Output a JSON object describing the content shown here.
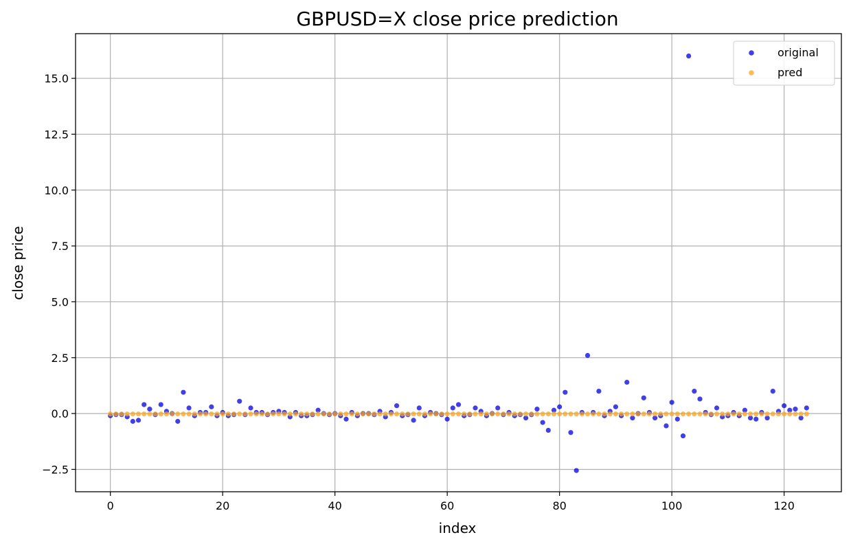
{
  "chart_data": {
    "type": "scatter",
    "title": "GBPUSD=X close price prediction",
    "xlabel": "index",
    "ylabel": "close price",
    "xlim": [
      -6.2,
      130.2
    ],
    "ylim": [
      -3.5,
      17.0
    ],
    "xticks": [
      0,
      20,
      40,
      60,
      80,
      100,
      120
    ],
    "yticks": [
      -2.5,
      0.0,
      2.5,
      5.0,
      7.5,
      10.0,
      12.5,
      15.0
    ],
    "grid": true,
    "legend_position": "upper right",
    "series": [
      {
        "name": "original",
        "color": "#0000dd",
        "x": [
          0,
          1,
          2,
          3,
          4,
          5,
          6,
          7,
          8,
          9,
          10,
          11,
          12,
          13,
          14,
          15,
          16,
          17,
          18,
          19,
          20,
          21,
          22,
          23,
          24,
          25,
          26,
          27,
          28,
          29,
          30,
          31,
          32,
          33,
          34,
          35,
          36,
          37,
          38,
          39,
          40,
          41,
          42,
          43,
          44,
          45,
          46,
          47,
          48,
          49,
          50,
          51,
          52,
          53,
          54,
          55,
          56,
          57,
          58,
          59,
          60,
          61,
          62,
          63,
          64,
          65,
          66,
          67,
          68,
          69,
          70,
          71,
          72,
          73,
          74,
          75,
          76,
          77,
          78,
          79,
          80,
          81,
          82,
          83,
          84,
          85,
          86,
          87,
          88,
          89,
          90,
          91,
          92,
          93,
          94,
          95,
          96,
          97,
          98,
          99,
          100,
          101,
          102,
          103,
          104,
          105,
          106,
          107,
          108,
          109,
          110,
          111,
          112,
          113,
          114,
          115,
          116,
          117,
          118,
          119,
          120,
          121,
          122,
          123,
          124
        ],
        "y": [
          -0.1,
          -0.05,
          -0.05,
          -0.15,
          -0.35,
          -0.3,
          0.4,
          0.2,
          -0.05,
          0.4,
          0.1,
          0.0,
          -0.35,
          0.95,
          0.25,
          -0.1,
          0.05,
          0.05,
          0.3,
          -0.1,
          0.05,
          -0.1,
          -0.05,
          0.55,
          -0.05,
          0.25,
          0.05,
          0.05,
          -0.05,
          0.05,
          0.1,
          0.05,
          -0.15,
          0.05,
          -0.1,
          -0.1,
          -0.05,
          0.15,
          0.0,
          -0.05,
          0.0,
          -0.1,
          -0.25,
          0.05,
          -0.1,
          0.0,
          0.0,
          -0.05,
          0.1,
          -0.15,
          0.05,
          0.35,
          -0.1,
          -0.05,
          -0.3,
          0.25,
          -0.1,
          0.05,
          0.0,
          -0.05,
          -0.25,
          0.25,
          0.4,
          -0.1,
          -0.05,
          0.25,
          0.1,
          -0.1,
          0.0,
          0.25,
          -0.05,
          0.05,
          -0.1,
          -0.05,
          -0.2,
          -0.05,
          0.2,
          -0.4,
          -0.75,
          0.15,
          0.3,
          0.95,
          -0.85,
          -2.55,
          0.05,
          2.6,
          0.05,
          1.0,
          -0.1,
          0.1,
          0.3,
          -0.1,
          1.4,
          -0.2,
          0.0,
          0.7,
          0.05,
          -0.2,
          -0.1,
          -0.55,
          0.5,
          -0.25,
          -1.0,
          16.0,
          1.0,
          0.65,
          0.05,
          -0.05,
          0.25,
          -0.15,
          -0.1,
          0.05,
          -0.1,
          0.15,
          -0.2,
          -0.25,
          0.05,
          -0.2,
          1.0,
          0.1,
          0.35,
          0.15,
          0.2,
          -0.2,
          0.25
        ]
      },
      {
        "name": "pred",
        "color": "#f5a623",
        "x": [
          0,
          1,
          2,
          3,
          4,
          5,
          6,
          7,
          8,
          9,
          10,
          11,
          12,
          13,
          14,
          15,
          16,
          17,
          18,
          19,
          20,
          21,
          22,
          23,
          24,
          25,
          26,
          27,
          28,
          29,
          30,
          31,
          32,
          33,
          34,
          35,
          36,
          37,
          38,
          39,
          40,
          41,
          42,
          43,
          44,
          45,
          46,
          47,
          48,
          49,
          50,
          51,
          52,
          53,
          54,
          55,
          56,
          57,
          58,
          59,
          60,
          61,
          62,
          63,
          64,
          65,
          66,
          67,
          68,
          69,
          70,
          71,
          72,
          73,
          74,
          75,
          76,
          77,
          78,
          79,
          80,
          81,
          82,
          83,
          84,
          85,
          86,
          87,
          88,
          89,
          90,
          91,
          92,
          93,
          94,
          95,
          96,
          97,
          98,
          99,
          100,
          101,
          102,
          103,
          104,
          105,
          106,
          107,
          108,
          109,
          110,
          111,
          112,
          113,
          114,
          115,
          116,
          117,
          118,
          119,
          120,
          121,
          122,
          123,
          124
        ],
        "y": [
          -0.02,
          -0.02,
          -0.02,
          -0.02,
          -0.02,
          -0.02,
          -0.02,
          -0.02,
          -0.02,
          -0.02,
          -0.02,
          -0.02,
          -0.02,
          -0.02,
          -0.02,
          -0.02,
          -0.02,
          -0.02,
          -0.02,
          -0.02,
          -0.02,
          -0.02,
          -0.02,
          -0.02,
          -0.02,
          -0.02,
          -0.02,
          -0.02,
          -0.02,
          -0.02,
          -0.02,
          -0.02,
          -0.02,
          -0.02,
          -0.02,
          -0.02,
          -0.02,
          -0.02,
          -0.02,
          -0.02,
          -0.02,
          -0.02,
          -0.02,
          -0.02,
          -0.02,
          -0.02,
          -0.02,
          -0.02,
          -0.02,
          -0.02,
          -0.02,
          -0.02,
          -0.02,
          -0.02,
          -0.02,
          -0.02,
          -0.02,
          -0.02,
          -0.02,
          -0.02,
          -0.02,
          -0.02,
          -0.02,
          -0.02,
          -0.02,
          -0.02,
          -0.02,
          -0.02,
          -0.02,
          -0.02,
          -0.02,
          -0.02,
          -0.02,
          -0.02,
          -0.02,
          -0.02,
          -0.02,
          -0.02,
          -0.02,
          -0.02,
          -0.02,
          -0.02,
          -0.02,
          -0.02,
          -0.02,
          -0.02,
          -0.02,
          -0.02,
          -0.02,
          -0.02,
          -0.02,
          -0.02,
          -0.02,
          -0.02,
          -0.02,
          -0.02,
          -0.02,
          -0.02,
          -0.02,
          -0.02,
          -0.02,
          -0.02,
          -0.02,
          -0.02,
          -0.02,
          -0.02,
          -0.02,
          -0.02,
          -0.02,
          -0.02,
          -0.02,
          -0.02,
          -0.02,
          -0.02,
          -0.02,
          -0.02,
          -0.02,
          -0.02,
          -0.02,
          -0.02,
          -0.02,
          -0.02,
          -0.02,
          -0.02,
          -0.02
        ]
      }
    ]
  }
}
